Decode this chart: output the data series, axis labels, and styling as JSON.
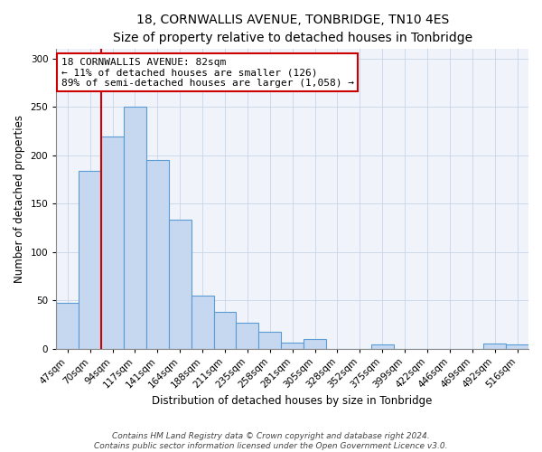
{
  "title": "18, CORNWALLIS AVENUE, TONBRIDGE, TN10 4ES",
  "subtitle": "Size of property relative to detached houses in Tonbridge",
  "xlabel": "Distribution of detached houses by size in Tonbridge",
  "ylabel": "Number of detached properties",
  "categories": [
    "47sqm",
    "70sqm",
    "94sqm",
    "117sqm",
    "141sqm",
    "164sqm",
    "188sqm",
    "211sqm",
    "235sqm",
    "258sqm",
    "281sqm",
    "305sqm",
    "328sqm",
    "352sqm",
    "375sqm",
    "399sqm",
    "422sqm",
    "446sqm",
    "469sqm",
    "492sqm",
    "516sqm"
  ],
  "values": [
    47,
    184,
    219,
    250,
    195,
    133,
    55,
    38,
    27,
    17,
    6,
    10,
    0,
    0,
    4,
    0,
    0,
    0,
    0,
    5,
    4
  ],
  "bar_color": "#c5d8f0",
  "bar_edge_color": "#5b9bd5",
  "marker_color": "#cc0000",
  "annotation_box_edge": "#cc0000",
  "annotation_lines": [
    "18 CORNWALLIS AVENUE: 82sqm",
    "← 11% of detached houses are smaller (126)",
    "89% of semi-detached houses are larger (1,058) →"
  ],
  "ylim": [
    0,
    310
  ],
  "footer_lines": [
    "Contains HM Land Registry data © Crown copyright and database right 2024.",
    "Contains public sector information licensed under the Open Government Licence v3.0."
  ],
  "title_fontsize": 10,
  "axis_label_fontsize": 8.5,
  "tick_fontsize": 7.5,
  "annotation_fontsize": 8,
  "footer_fontsize": 6.5,
  "bg_color": "#f0f4fa"
}
